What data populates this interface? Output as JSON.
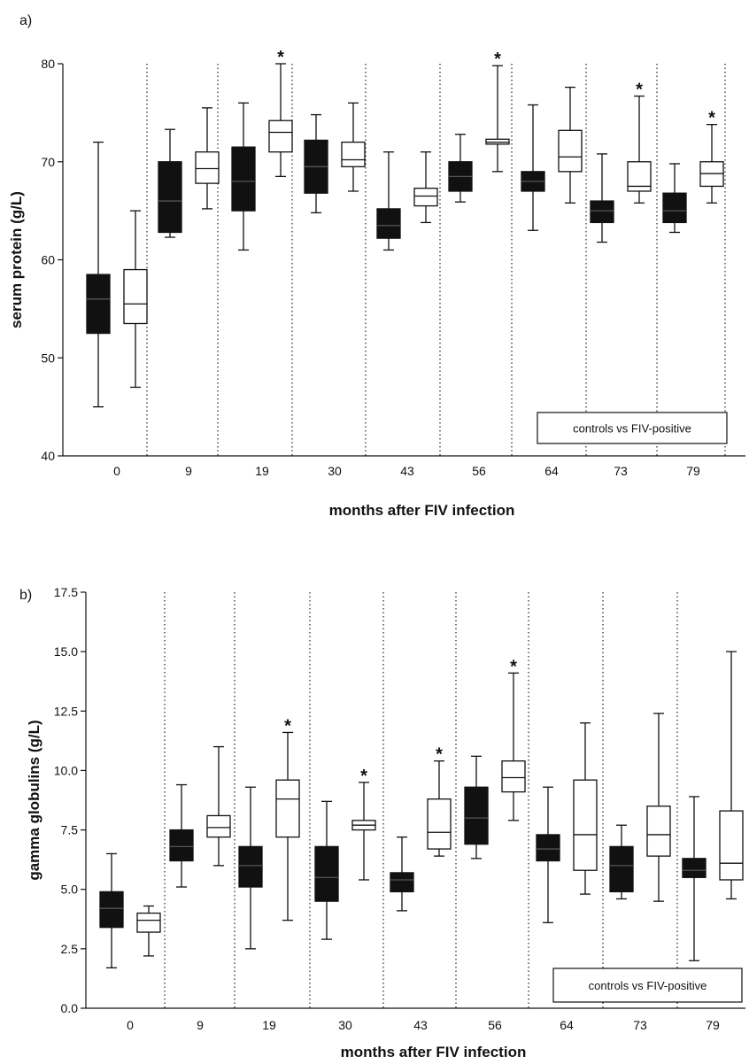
{
  "chart_data": [
    {
      "type": "boxplot",
      "panel_label": "a)",
      "xlabel": "months after FIV infection",
      "ylabel": "serum protein (g/L)",
      "ylim": [
        40,
        80
      ],
      "yticks": [
        "40",
        "50",
        "60",
        "70",
        "80"
      ],
      "categories": [
        "0",
        "9",
        "19",
        "30",
        "43",
        "56",
        "64",
        "73",
        "79"
      ],
      "legend": "controls vs FIV-positive",
      "legend_position": "bottom-right",
      "colors": {
        "controls": "#111111",
        "fiv_positive": "#ffffff"
      },
      "groups": [
        {
          "month": "0",
          "controls": [
            45,
            52.5,
            56,
            58.5,
            72
          ],
          "fiv": [
            47,
            53.5,
            55.5,
            59,
            65
          ],
          "sig": ""
        },
        {
          "month": "9",
          "controls": [
            62.3,
            62.8,
            66,
            70,
            73.3
          ],
          "fiv": [
            65.2,
            67.8,
            69.3,
            71,
            75.5
          ],
          "sig": ""
        },
        {
          "month": "19",
          "controls": [
            61,
            65,
            68,
            71.5,
            76
          ],
          "fiv": [
            68.5,
            71,
            73,
            74.2,
            80
          ],
          "sig": "*"
        },
        {
          "month": "30",
          "controls": [
            64.8,
            66.8,
            69.5,
            72.2,
            74.8
          ],
          "fiv": [
            67,
            69.5,
            70.2,
            72,
            76
          ],
          "sig": ""
        },
        {
          "month": "43",
          "controls": [
            61,
            62.2,
            63.5,
            65.2,
            71
          ],
          "fiv": [
            63.8,
            65.5,
            66.5,
            67.3,
            71
          ],
          "sig": ""
        },
        {
          "month": "56",
          "controls": [
            65.9,
            67,
            68.5,
            70,
            72.8
          ],
          "fiv": [
            69,
            71.8,
            72,
            72.3,
            79.8
          ],
          "sig": "*"
        },
        {
          "month": "64",
          "controls": [
            63,
            67,
            68,
            69,
            75.8
          ],
          "fiv": [
            65.8,
            69,
            70.5,
            73.2,
            77.6
          ],
          "sig": ""
        },
        {
          "month": "73",
          "controls": [
            61.8,
            63.8,
            65,
            66,
            70.8
          ],
          "fiv": [
            65.8,
            67,
            67.5,
            70,
            76.7
          ],
          "sig": "*"
        },
        {
          "month": "79",
          "controls": [
            62.8,
            63.8,
            65,
            66.8,
            69.8
          ],
          "fiv": [
            65.8,
            67.5,
            68.8,
            70,
            73.8
          ],
          "sig": "*"
        }
      ]
    },
    {
      "type": "boxplot",
      "panel_label": "b)",
      "xlabel": "months after FIV infection",
      "ylabel": "gamma globulins (g/L)",
      "ylim": [
        0,
        17.5
      ],
      "yticks": [
        "0.0",
        "2.5",
        "5.0",
        "7.5",
        "10.0",
        "12.5",
        "15.0",
        "17.5"
      ],
      "categories": [
        "0",
        "9",
        "19",
        "30",
        "43",
        "56",
        "64",
        "73",
        "79"
      ],
      "legend": "controls vs FIV-positive",
      "legend_position": "bottom-right",
      "colors": {
        "controls": "#111111",
        "fiv_positive": "#ffffff"
      },
      "groups": [
        {
          "month": "0",
          "controls": [
            1.7,
            3.4,
            4.2,
            4.9,
            6.5
          ],
          "fiv": [
            2.2,
            3.2,
            3.7,
            4.0,
            4.3
          ],
          "sig": ""
        },
        {
          "month": "9",
          "controls": [
            5.1,
            6.2,
            6.8,
            7.5,
            9.4
          ],
          "fiv": [
            6.0,
            7.2,
            7.6,
            8.1,
            11.0
          ],
          "sig": ""
        },
        {
          "month": "19",
          "controls": [
            2.5,
            5.1,
            6.0,
            6.8,
            9.3
          ],
          "fiv": [
            3.7,
            7.2,
            8.8,
            9.6,
            11.6
          ],
          "sig": "*"
        },
        {
          "month": "30",
          "controls": [
            2.9,
            4.5,
            5.5,
            6.8,
            8.7
          ],
          "fiv": [
            5.4,
            7.5,
            7.7,
            7.9,
            9.5
          ],
          "sig": "*"
        },
        {
          "month": "43",
          "controls": [
            4.1,
            4.9,
            5.4,
            5.7,
            7.2
          ],
          "fiv": [
            6.4,
            6.7,
            7.4,
            8.8,
            10.4
          ],
          "sig": "*"
        },
        {
          "month": "56",
          "controls": [
            6.3,
            6.9,
            8.0,
            9.3,
            10.6
          ],
          "fiv": [
            7.9,
            9.1,
            9.7,
            10.4,
            14.1
          ],
          "sig": "*"
        },
        {
          "month": "64",
          "controls": [
            3.6,
            6.2,
            6.7,
            7.3,
            9.3
          ],
          "fiv": [
            4.8,
            5.8,
            7.3,
            9.6,
            12.0
          ],
          "sig": ""
        },
        {
          "month": "73",
          "controls": [
            4.6,
            4.9,
            6.0,
            6.8,
            7.7
          ],
          "fiv": [
            4.5,
            6.4,
            7.3,
            8.5,
            12.4
          ],
          "sig": ""
        },
        {
          "month": "79",
          "controls": [
            2.0,
            5.5,
            5.8,
            6.3,
            8.9
          ],
          "fiv": [
            4.6,
            5.4,
            6.1,
            8.3,
            15.0
          ],
          "sig": ""
        }
      ]
    }
  ]
}
